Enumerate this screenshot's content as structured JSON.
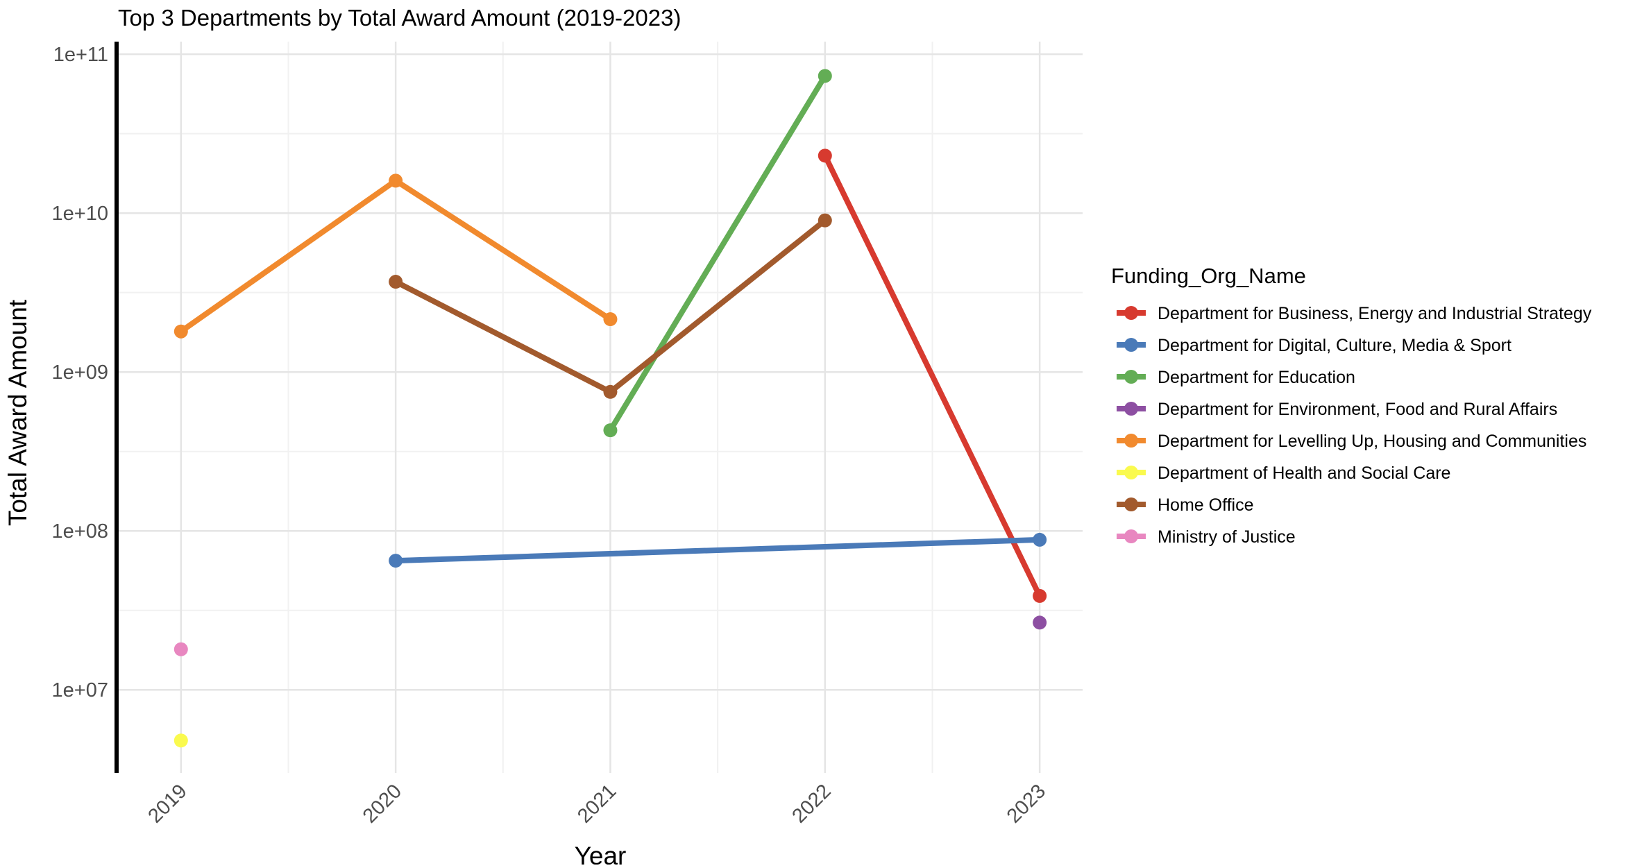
{
  "chart_data": {
    "type": "line",
    "title": "Top 3 Departments by Total Award Amount (2019-2023)",
    "xlabel": "Year",
    "ylabel": "Total Award Amount",
    "x": [
      2019,
      2020,
      2021,
      2022,
      2023
    ],
    "x_tick_labels": [
      "2019",
      "2020",
      "2021",
      "2022",
      "2023"
    ],
    "y_scale": "log10",
    "ylim": [
      3000000,
      120000000000
    ],
    "y_ticks": [
      10000000,
      100000000,
      1000000000,
      10000000000,
      100000000000
    ],
    "y_tick_labels": [
      "1e+07",
      "1e+08",
      "1e+09",
      "1e+10",
      "1e+11"
    ],
    "grid": true,
    "legend": {
      "title": "Funding_Org_Name",
      "position": "right"
    },
    "series": [
      {
        "name": "Department for Business, Energy and Industrial Strategy",
        "color": "#d73a2f",
        "points": [
          [
            2022,
            23000000000
          ],
          [
            2023,
            39000000
          ]
        ]
      },
      {
        "name": "Department for Digital, Culture, Media & Sport",
        "color": "#4a7ab8",
        "points": [
          [
            2020,
            65000000
          ],
          [
            2023,
            88000000
          ]
        ]
      },
      {
        "name": "Department for Education",
        "color": "#63ad55",
        "points": [
          [
            2021,
            430000000
          ],
          [
            2022,
            73000000000
          ]
        ]
      },
      {
        "name": "Department for Environment, Food and Rural Affairs",
        "color": "#8d4fa2",
        "points": [
          [
            2023,
            26500000
          ]
        ]
      },
      {
        "name": "Department for Levelling Up, Housing and Communities",
        "color": "#f18a2e",
        "points": [
          [
            2019,
            1800000000
          ],
          [
            2020,
            16000000000
          ],
          [
            2021,
            2150000000
          ]
        ]
      },
      {
        "name": "Department of Health and Social Care",
        "color": "#fafa4e",
        "points": [
          [
            2019,
            4800000
          ]
        ]
      },
      {
        "name": "Home Office",
        "color": "#a25a2d",
        "points": [
          [
            2020,
            3700000000
          ],
          [
            2021,
            750000000
          ],
          [
            2022,
            9000000000
          ]
        ]
      },
      {
        "name": "Ministry of Justice",
        "color": "#e887c0",
        "points": [
          [
            2019,
            18000000
          ]
        ]
      }
    ]
  }
}
